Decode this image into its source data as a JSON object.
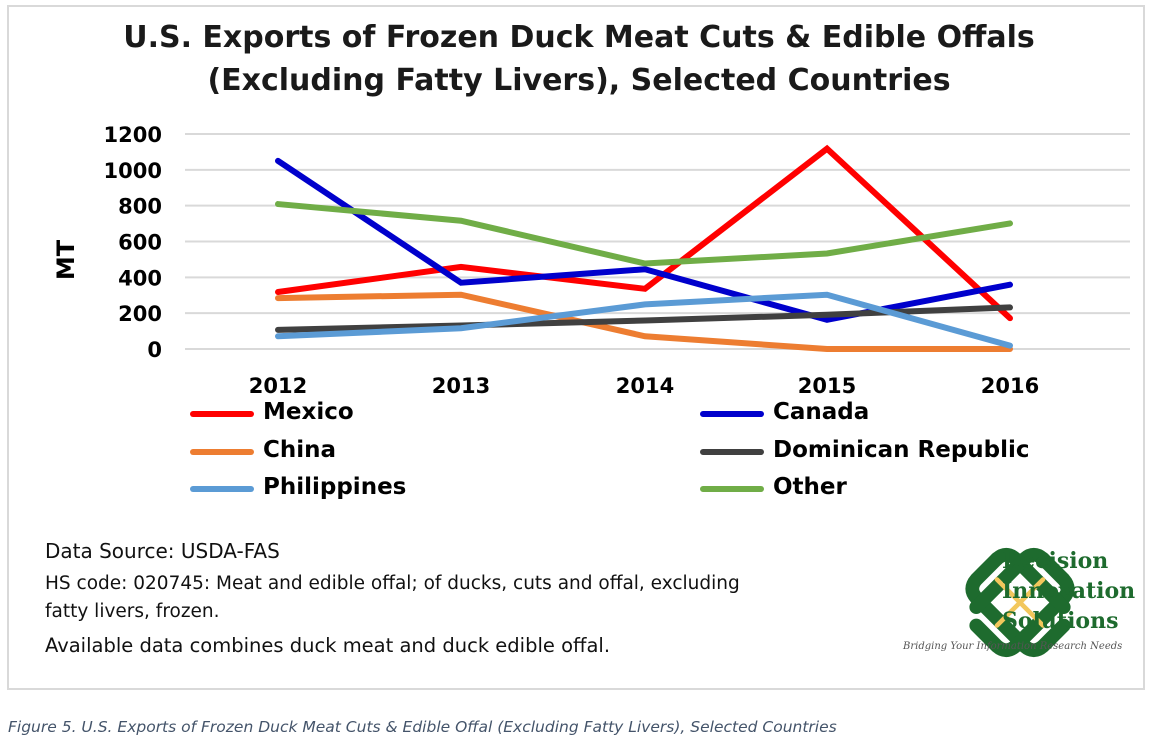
{
  "chart_data": {
    "type": "line",
    "title": "U.S. Exports of Frozen Duck Meat Cuts & Edible Offals (Excluding Fatty Livers), Selected Countries",
    "title_lines": [
      "U.S. Exports of Frozen Duck Meat Cuts & Edible Offals",
      "(Excluding  Fatty Livers), Selected Countries"
    ],
    "ylabel": "MT",
    "xlabel": "",
    "categories": [
      "2012",
      "2013",
      "2014",
      "2015",
      "2016"
    ],
    "ylim": [
      0,
      1200
    ],
    "yticks": [
      "0",
      "200",
      "400",
      "600",
      "800",
      "1000",
      "1200"
    ],
    "grid": true,
    "legend_position": "bottom",
    "series": [
      {
        "name": "Mexico",
        "color": "#ff0000",
        "values": [
          318,
          458,
          336,
          1118,
          172
        ]
      },
      {
        "name": "Canada",
        "color": "#0000cc",
        "values": [
          1050,
          370,
          445,
          163,
          359
        ]
      },
      {
        "name": "China",
        "color": "#ed7d31",
        "values": [
          284,
          303,
          71,
          0,
          0
        ]
      },
      {
        "name": "Dominican Republic",
        "color": "#404040",
        "values": [
          107,
          131,
          159,
          191,
          232
        ]
      },
      {
        "name": "Philippines",
        "color": "#5b9bd5",
        "values": [
          71,
          116,
          249,
          303,
          19
        ]
      },
      {
        "name": "Other",
        "color": "#70ad47",
        "values": [
          809,
          716,
          477,
          533,
          701
        ]
      }
    ]
  },
  "notes": {
    "source": "Data Source: USDA-FAS",
    "hs_line1": "HS code: 020745:  Meat and edible offal; of ducks, cuts and offal, excluding",
    "hs_line2": "fatty livers, frozen.",
    "combined": "Available data combines duck meat and duck edible offal."
  },
  "logo": {
    "line1": "Decision",
    "line2": "Innovation",
    "line3": "Solutions",
    "tagline": "Bridging Your Information Research Needs",
    "green": "#1e6b2e",
    "gold": "#f2c75c"
  },
  "caption": "Figure 5. U.S. Exports of Frozen Duck Meat Cuts & Edible Offal (Excluding Fatty Livers), Selected Countries"
}
